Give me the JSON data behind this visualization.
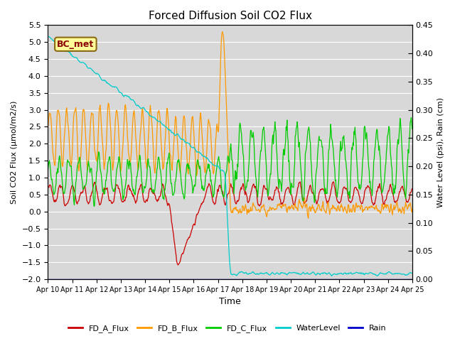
{
  "title": "Forced Diffusion Soil CO2 Flux",
  "xlabel": "Time",
  "ylabel_left": "Soil CO2 Flux (μmol/m2/s)",
  "ylabel_right": "Water Level (psi), Rain (cm)",
  "ylim_left": [
    -2.0,
    5.5
  ],
  "ylim_right": [
    0.0,
    0.45
  ],
  "yticks_left": [
    -2.0,
    -1.5,
    -1.0,
    -0.5,
    0.0,
    0.5,
    1.0,
    1.5,
    2.0,
    2.5,
    3.0,
    3.5,
    4.0,
    4.5,
    5.0,
    5.5
  ],
  "yticks_right": [
    0.0,
    0.05,
    0.1,
    0.15,
    0.2,
    0.25,
    0.3,
    0.35,
    0.4,
    0.45
  ],
  "colors": {
    "FD_A_Flux": "#cc0000",
    "FD_B_Flux": "#ff9900",
    "FD_C_Flux": "#00cc00",
    "WaterLevel": "#00cccc",
    "Rain": "#0000cc"
  },
  "annotation_text": "BC_met",
  "annotation_color": "#8b0000",
  "annotation_bg": "#ffff99",
  "bg_color": "#d8d8d8",
  "grid_color": "#ffffff",
  "fig_bg": "#ffffff",
  "n_points": 720
}
